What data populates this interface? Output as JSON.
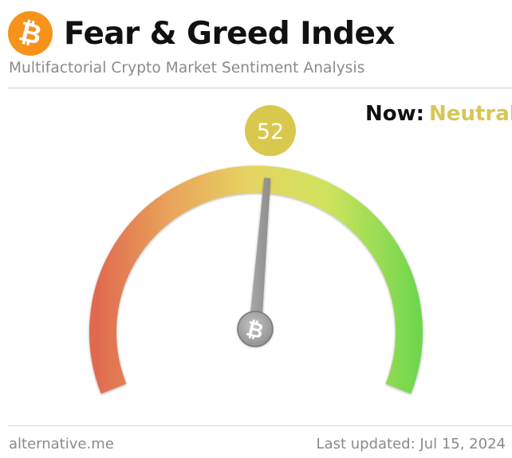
{
  "header": {
    "logo_icon": "bitcoin-icon",
    "logo_symbol": "₿",
    "title": "Fear & Greed Index",
    "subtitle": "Multifactorial Crypto Market Sentiment Analysis"
  },
  "gauge": {
    "value": 52,
    "value_label": "52",
    "min": 0,
    "max": 100,
    "needle_icon": "bitcoin-icon",
    "hub_symbol": "₿",
    "colors": {
      "fear": "#e0694f",
      "neutral": "#e3d35a",
      "greed": "#6fd64d",
      "bubble": "#d9c84e",
      "needle": "#9b9b9b"
    }
  },
  "status": {
    "now_label": "Now:",
    "now_value": "Neutral",
    "color": "#d8c655"
  },
  "footer": {
    "source": "alternative.me",
    "last_updated": "Last updated: Jul 15, 2024"
  }
}
